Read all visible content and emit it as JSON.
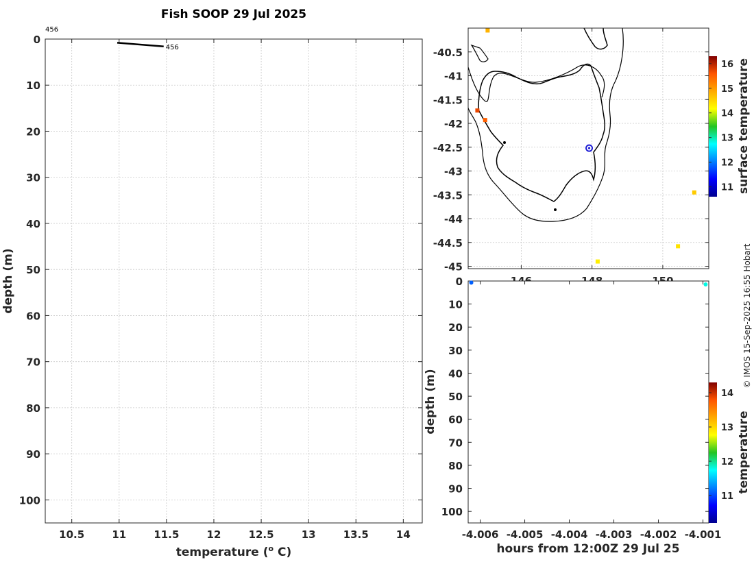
{
  "title": "Fish SOOP 29 Jul 2025",
  "credit": "© IMOS 15-Sep-2025 16:55 Hobart",
  "colors": {
    "profile_line": "#000000",
    "vessel_marker": "#1f1fd6",
    "coast": "#000000"
  },
  "chart_data": [
    {
      "id": "profile",
      "type": "line",
      "title": "Fish SOOP 29 Jul 2025",
      "xlabel": "temperature (",
      "xlabel_sup": "o",
      "xlabel_suffix": " C)",
      "ylabel": "depth (m)",
      "xlim": [
        10.22,
        14.2
      ],
      "ylim": [
        0,
        105
      ],
      "y_reversed": true,
      "grid": true,
      "xticks": [
        10.5,
        11,
        11.5,
        12,
        12.5,
        13,
        13.5,
        14
      ],
      "xtick_labels": [
        "10.5",
        "11",
        "11.5",
        "12",
        "12.5",
        "13",
        "13.5",
        "14"
      ],
      "yticks": [
        0,
        10,
        20,
        30,
        40,
        50,
        60,
        70,
        80,
        90,
        100
      ],
      "ytick_labels": [
        "0",
        "10",
        "20",
        "30",
        "40",
        "50",
        "60",
        "70",
        "80",
        "90",
        "100"
      ],
      "series": [
        {
          "name": "456",
          "x": [
            10.98,
            11.47
          ],
          "y": [
            0.8,
            1.6
          ],
          "label": "456",
          "top_label": "456"
        }
      ]
    },
    {
      "id": "map",
      "type": "heatmap",
      "colorbar_label": "surface temperature",
      "colorbar_range": [
        10.6,
        16.3
      ],
      "colorbar_ticks": [
        "11",
        "12",
        "13",
        "14",
        "15",
        "16"
      ],
      "colorbar_tick_values": [
        11,
        12,
        13,
        14,
        15,
        16
      ],
      "xlim": [
        144.5,
        151.3
      ],
      "ylim": [
        -45.05,
        -40.0
      ],
      "xticks": [
        146,
        148,
        150
      ],
      "xtick_labels": [
        "146",
        "148",
        "150"
      ],
      "yticks": [
        -40.5,
        -41,
        -41.5,
        -42,
        -42.5,
        -43,
        -43.5,
        -44,
        -44.5,
        -45
      ],
      "ytick_labels": [
        "-40.5",
        "-41",
        "-41.5",
        "-42",
        "-42.5",
        "-43",
        "-43.5",
        "-44",
        "-44.5",
        "-45"
      ],
      "vessel_position": {
        "lon": 147.92,
        "lat": -42.52
      },
      "sst_patches": [
        {
          "lon": 145.05,
          "lat": -40.05,
          "value": 14.8
        },
        {
          "lon": 144.76,
          "lat": -41.73,
          "value": 15.7
        },
        {
          "lon": 144.98,
          "lat": -41.93,
          "value": 15.5
        },
        {
          "lon": 148.16,
          "lat": -44.9,
          "value": 14.3
        },
        {
          "lon": 150.89,
          "lat": -43.45,
          "value": 14.6
        },
        {
          "lon": 150.43,
          "lat": -44.58,
          "value": 14.4
        }
      ]
    },
    {
      "id": "section",
      "type": "scatter",
      "xlabel": "hours from 12:00Z 29 Jul 25",
      "ylabel": "depth (m)",
      "colorbar_label": "temperature",
      "colorbar_range": [
        10.2,
        14.3
      ],
      "colorbar_ticks": [
        "11",
        "12",
        "13",
        "14"
      ],
      "colorbar_tick_values": [
        11,
        12,
        13,
        14
      ],
      "xlim": [
        -4.00627,
        -4.00087
      ],
      "ylim": [
        0,
        105
      ],
      "y_reversed": true,
      "xticks": [
        -4.006,
        -4.005,
        -4.004,
        -4.003,
        -4.002,
        -4.001
      ],
      "xtick_labels": [
        "-4.006",
        "-4.005",
        "-4.004",
        "-4.003",
        "-4.002",
        "-4.001"
      ],
      "yticks": [
        0,
        10,
        20,
        30,
        40,
        50,
        60,
        70,
        80,
        90,
        100
      ],
      "ytick_labels": [
        "0",
        "10",
        "20",
        "30",
        "40",
        "50",
        "60",
        "70",
        "80",
        "90",
        "100"
      ],
      "points": [
        {
          "x": -4.0062,
          "y": 0.7,
          "value": 11.1
        },
        {
          "x": -4.00094,
          "y": 1.5,
          "value": 11.8
        }
      ]
    }
  ]
}
